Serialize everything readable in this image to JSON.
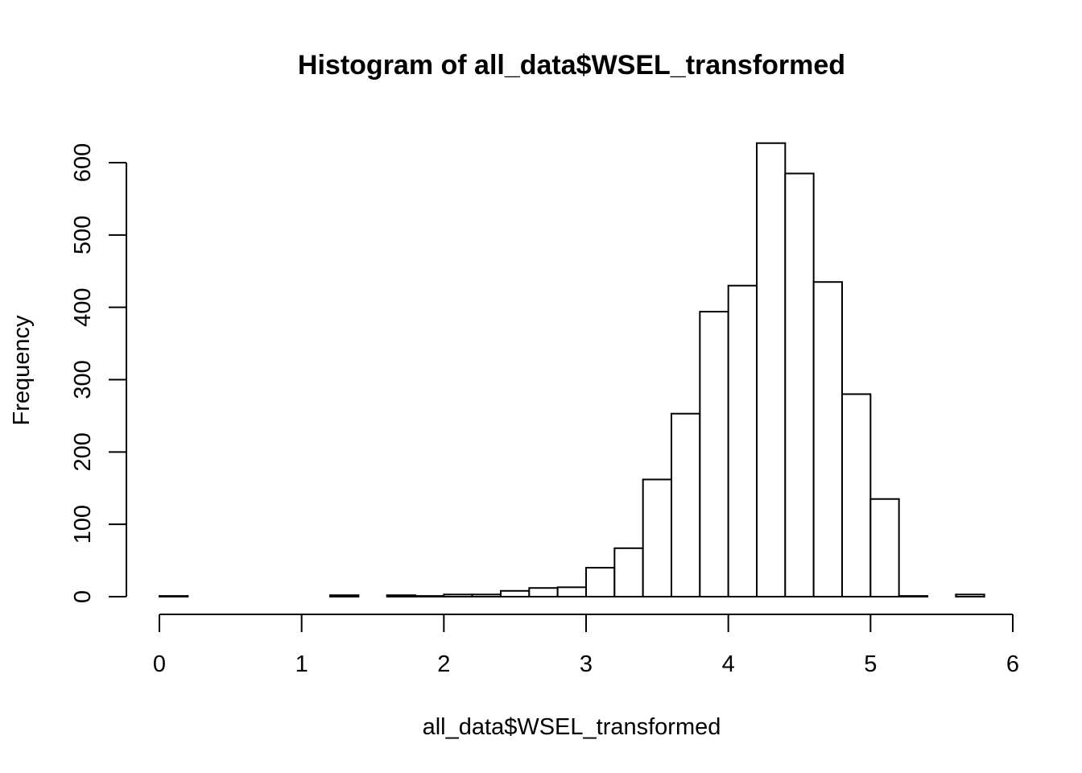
{
  "chart_data": {
    "type": "bar",
    "title": "Histogram of all_data$WSEL_transformed",
    "xlabel": "all_data$WSEL_transformed",
    "ylabel": "Frequency",
    "xlim": [
      0,
      6
    ],
    "ylim": [
      0,
      600
    ],
    "x_ticks": [
      0,
      1,
      2,
      3,
      4,
      5,
      6
    ],
    "y_ticks": [
      0,
      100,
      200,
      300,
      400,
      500,
      600
    ],
    "bin_width": 0.2,
    "bins": [
      {
        "x0": 0.0,
        "x1": 0.2,
        "count": 1
      },
      {
        "x0": 0.2,
        "x1": 0.4,
        "count": 0
      },
      {
        "x0": 0.4,
        "x1": 0.6,
        "count": 0
      },
      {
        "x0": 0.6,
        "x1": 0.8,
        "count": 0
      },
      {
        "x0": 0.8,
        "x1": 1.0,
        "count": 0
      },
      {
        "x0": 1.0,
        "x1": 1.2,
        "count": 0
      },
      {
        "x0": 1.2,
        "x1": 1.4,
        "count": 2
      },
      {
        "x0": 1.4,
        "x1": 1.6,
        "count": 0
      },
      {
        "x0": 1.6,
        "x1": 1.8,
        "count": 2
      },
      {
        "x0": 1.8,
        "x1": 2.0,
        "count": 1
      },
      {
        "x0": 2.0,
        "x1": 2.2,
        "count": 3
      },
      {
        "x0": 2.2,
        "x1": 2.4,
        "count": 3
      },
      {
        "x0": 2.4,
        "x1": 2.6,
        "count": 8
      },
      {
        "x0": 2.6,
        "x1": 2.8,
        "count": 12
      },
      {
        "x0": 2.8,
        "x1": 3.0,
        "count": 13
      },
      {
        "x0": 3.0,
        "x1": 3.2,
        "count": 40
      },
      {
        "x0": 3.2,
        "x1": 3.4,
        "count": 67
      },
      {
        "x0": 3.4,
        "x1": 3.6,
        "count": 162
      },
      {
        "x0": 3.6,
        "x1": 3.8,
        "count": 253
      },
      {
        "x0": 3.8,
        "x1": 4.0,
        "count": 394
      },
      {
        "x0": 4.0,
        "x1": 4.2,
        "count": 430
      },
      {
        "x0": 4.2,
        "x1": 4.4,
        "count": 627
      },
      {
        "x0": 4.4,
        "x1": 4.6,
        "count": 585
      },
      {
        "x0": 4.6,
        "x1": 4.8,
        "count": 435
      },
      {
        "x0": 4.8,
        "x1": 5.0,
        "count": 280
      },
      {
        "x0": 5.0,
        "x1": 5.2,
        "count": 135
      },
      {
        "x0": 5.2,
        "x1": 5.4,
        "count": 1
      },
      {
        "x0": 5.4,
        "x1": 5.6,
        "count": 0
      },
      {
        "x0": 5.6,
        "x1": 5.8,
        "count": 3
      }
    ],
    "grid": false,
    "legend": "none"
  }
}
